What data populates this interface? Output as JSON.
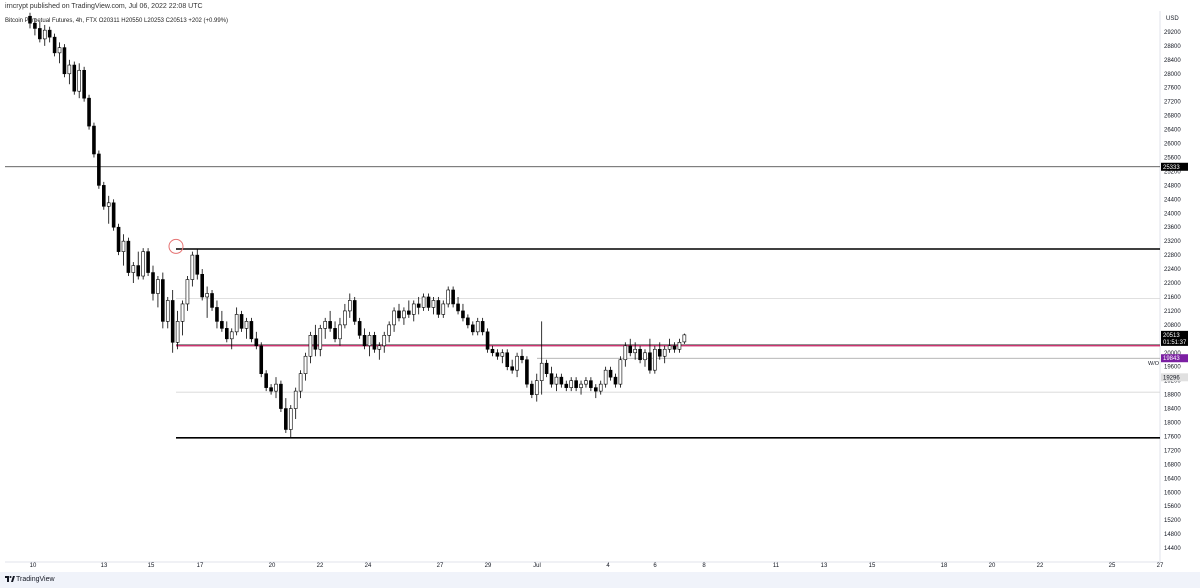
{
  "header": {
    "published": "irncrypt published on TradingView.com, Jul 06, 2022 22:08 UTC"
  },
  "legend": {
    "symbol": "Bitcoin Perpetual Futures, 4h, FTX",
    "ohlc": "O20311 H20550 L20253 C20513",
    "change": "+202 (+0.99%)"
  },
  "footer": {
    "brand": "TradingView",
    "logo_icon": "tradingview-logo-icon"
  },
  "colors": {
    "up_candle": "#ffffff",
    "down_candle": "#000000",
    "candle_outline": "#000000",
    "red_line": "#c2185b",
    "circle": "#e57373",
    "purple_tag": "#7b1fa2",
    "black_tag": "#000000",
    "grey_tag": "#e0e0e0"
  },
  "chart_data": {
    "type": "candlestick",
    "symbol": "Bitcoin Perpetual Futures",
    "timeframe": "4h",
    "exchange": "FTX",
    "currency": "USD",
    "last_ohlc": {
      "open": 20311,
      "high": 20550,
      "low": 20253,
      "close": 20513
    },
    "change": 202,
    "change_pct": 0.99,
    "ylim": [
      14000,
      29800
    ],
    "y_ticks": [
      29200,
      28800,
      28400,
      28000,
      27600,
      27200,
      26800,
      26400,
      26000,
      25600,
      25200,
      24800,
      24400,
      24000,
      23600,
      23200,
      22800,
      22400,
      22000,
      21600,
      21200,
      20800,
      20400,
      20000,
      19600,
      19200,
      18800,
      18400,
      18000,
      17600,
      17200,
      16800,
      16400,
      16000,
      15600,
      15200,
      14800,
      14400
    ],
    "x_ticks": [
      "10",
      "13",
      "15",
      "17",
      "20",
      "22",
      "24",
      "27",
      "29",
      "Jul",
      "4",
      "6",
      "8",
      "11",
      "13",
      "15",
      "18",
      "20",
      "22",
      "25",
      "27"
    ],
    "price_tags": [
      {
        "label": "25333",
        "value": 25333,
        "style": "black"
      },
      {
        "label": "20513",
        "value": 20513,
        "style": "black"
      },
      {
        "label": "01:51:37",
        "value": 20513,
        "style": "black-sub"
      },
      {
        "label": "19843",
        "value": 19843,
        "style": "purple"
      },
      {
        "label": "19296",
        "value": 19296,
        "style": "grey"
      }
    ],
    "level_label": "W/O",
    "horizontal_levels": [
      {
        "price": 25333,
        "style": "thin-black",
        "extent": "full"
      },
      {
        "price": 22975,
        "style": "thick-black",
        "extent": "from-peak"
      },
      {
        "price": 21560,
        "style": "faint-grey",
        "extent": "from-peak"
      },
      {
        "price": 20200,
        "style": "red",
        "extent": "from-peak"
      },
      {
        "price": 19843,
        "style": "thin-grey",
        "extent": "from-jul"
      },
      {
        "price": 18870,
        "style": "faint-grey",
        "extent": "from-peak"
      },
      {
        "price": 17560,
        "style": "thick-black",
        "extent": "from-peak"
      }
    ],
    "marker_circle": {
      "price": 23050
    },
    "candles": [
      {
        "o": 29650,
        "h": 29750,
        "l": 29300,
        "c": 29450
      },
      {
        "o": 29450,
        "h": 29600,
        "l": 29100,
        "c": 29300
      },
      {
        "o": 29300,
        "h": 29500,
        "l": 28900,
        "c": 29000
      },
      {
        "o": 29000,
        "h": 29400,
        "l": 28800,
        "c": 29250
      },
      {
        "o": 29250,
        "h": 29350,
        "l": 28900,
        "c": 29050
      },
      {
        "o": 29050,
        "h": 29150,
        "l": 28500,
        "c": 28600
      },
      {
        "o": 28600,
        "h": 28900,
        "l": 28300,
        "c": 28750
      },
      {
        "o": 28750,
        "h": 28850,
        "l": 27900,
        "c": 28000
      },
      {
        "o": 28000,
        "h": 28400,
        "l": 27700,
        "c": 28250
      },
      {
        "o": 28250,
        "h": 28350,
        "l": 27400,
        "c": 27500
      },
      {
        "o": 27500,
        "h": 28300,
        "l": 27300,
        "c": 28100
      },
      {
        "o": 28100,
        "h": 28200,
        "l": 27200,
        "c": 27300
      },
      {
        "o": 27300,
        "h": 27400,
        "l": 26400,
        "c": 26500
      },
      {
        "o": 26500,
        "h": 26600,
        "l": 25600,
        "c": 25700
      },
      {
        "o": 25700,
        "h": 25800,
        "l": 24700,
        "c": 24800
      },
      {
        "o": 24800,
        "h": 24900,
        "l": 24100,
        "c": 24200
      },
      {
        "o": 24200,
        "h": 24500,
        "l": 23700,
        "c": 24300
      },
      {
        "o": 24300,
        "h": 24400,
        "l": 23500,
        "c": 23600
      },
      {
        "o": 23600,
        "h": 23700,
        "l": 22800,
        "c": 22900
      },
      {
        "o": 22900,
        "h": 23400,
        "l": 22500,
        "c": 23200
      },
      {
        "o": 23200,
        "h": 23300,
        "l": 22200,
        "c": 22300
      },
      {
        "o": 22300,
        "h": 22600,
        "l": 22000,
        "c": 22500
      },
      {
        "o": 22500,
        "h": 22900,
        "l": 22100,
        "c": 22200
      },
      {
        "o": 22200,
        "h": 23000,
        "l": 22100,
        "c": 22900
      },
      {
        "o": 22900,
        "h": 23000,
        "l": 22200,
        "c": 22300
      },
      {
        "o": 22300,
        "h": 22500,
        "l": 21500,
        "c": 21700
      },
      {
        "o": 21700,
        "h": 22200,
        "l": 21300,
        "c": 22100
      },
      {
        "o": 22100,
        "h": 22300,
        "l": 20700,
        "c": 20900
      },
      {
        "o": 20900,
        "h": 21600,
        "l": 20700,
        "c": 21500
      },
      {
        "o": 21500,
        "h": 21800,
        "l": 20000,
        "c": 20300
      },
      {
        "o": 20300,
        "h": 21200,
        "l": 20100,
        "c": 20900
      },
      {
        "o": 20900,
        "h": 21500,
        "l": 20500,
        "c": 21400
      },
      {
        "o": 21400,
        "h": 22200,
        "l": 21200,
        "c": 22100
      },
      {
        "o": 22100,
        "h": 22900,
        "l": 21900,
        "c": 22800
      },
      {
        "o": 22800,
        "h": 22980,
        "l": 22100,
        "c": 22250
      },
      {
        "o": 22250,
        "h": 22400,
        "l": 21500,
        "c": 21600
      },
      {
        "o": 21600,
        "h": 21900,
        "l": 21000,
        "c": 21700
      },
      {
        "o": 21700,
        "h": 21800,
        "l": 21200,
        "c": 21300
      },
      {
        "o": 21300,
        "h": 21500,
        "l": 20700,
        "c": 20900
      },
      {
        "o": 20900,
        "h": 21200,
        "l": 20600,
        "c": 20700
      },
      {
        "o": 20700,
        "h": 20900,
        "l": 20300,
        "c": 20400
      },
      {
        "o": 20400,
        "h": 20700,
        "l": 20100,
        "c": 20600
      },
      {
        "o": 20600,
        "h": 21300,
        "l": 20500,
        "c": 21100
      },
      {
        "o": 21100,
        "h": 21200,
        "l": 20600,
        "c": 20700
      },
      {
        "o": 20700,
        "h": 21000,
        "l": 20400,
        "c": 20900
      },
      {
        "o": 20900,
        "h": 21000,
        "l": 20300,
        "c": 20400
      },
      {
        "o": 20400,
        "h": 20600,
        "l": 20100,
        "c": 20200
      },
      {
        "o": 20200,
        "h": 20300,
        "l": 19300,
        "c": 19400
      },
      {
        "o": 19400,
        "h": 19500,
        "l": 18900,
        "c": 19000
      },
      {
        "o": 19000,
        "h": 19100,
        "l": 18800,
        "c": 18900
      },
      {
        "o": 18900,
        "h": 19300,
        "l": 18700,
        "c": 19100
      },
      {
        "o": 19100,
        "h": 19200,
        "l": 18300,
        "c": 18400
      },
      {
        "o": 18400,
        "h": 18700,
        "l": 17700,
        "c": 17800
      },
      {
        "o": 17800,
        "h": 18500,
        "l": 17560,
        "c": 18400
      },
      {
        "o": 18400,
        "h": 19000,
        "l": 18100,
        "c": 18900
      },
      {
        "o": 18900,
        "h": 19500,
        "l": 18700,
        "c": 19400
      },
      {
        "o": 19400,
        "h": 20000,
        "l": 19200,
        "c": 19900
      },
      {
        "o": 19900,
        "h": 20600,
        "l": 19700,
        "c": 20500
      },
      {
        "o": 20500,
        "h": 20800,
        "l": 19900,
        "c": 20100
      },
      {
        "o": 20100,
        "h": 20800,
        "l": 19900,
        "c": 20700
      },
      {
        "o": 20700,
        "h": 21000,
        "l": 20400,
        "c": 20900
      },
      {
        "o": 20900,
        "h": 21200,
        "l": 20600,
        "c": 20700
      },
      {
        "o": 20700,
        "h": 20900,
        "l": 20300,
        "c": 20400
      },
      {
        "o": 20400,
        "h": 21000,
        "l": 20200,
        "c": 20800
      },
      {
        "o": 20800,
        "h": 21400,
        "l": 20700,
        "c": 21200
      },
      {
        "o": 21200,
        "h": 21700,
        "l": 21000,
        "c": 21500
      },
      {
        "o": 21500,
        "h": 21600,
        "l": 20800,
        "c": 20900
      },
      {
        "o": 20900,
        "h": 21000,
        "l": 20400,
        "c": 20500
      },
      {
        "o": 20500,
        "h": 20700,
        "l": 20100,
        "c": 20200
      },
      {
        "o": 20200,
        "h": 20600,
        "l": 19900,
        "c": 20500
      },
      {
        "o": 20500,
        "h": 20600,
        "l": 20000,
        "c": 20100
      },
      {
        "o": 20100,
        "h": 20300,
        "l": 19800,
        "c": 20200
      },
      {
        "o": 20200,
        "h": 20600,
        "l": 20000,
        "c": 20500
      },
      {
        "o": 20500,
        "h": 20900,
        "l": 20300,
        "c": 20800
      },
      {
        "o": 20800,
        "h": 21300,
        "l": 20600,
        "c": 21200
      },
      {
        "o": 21200,
        "h": 21400,
        "l": 20900,
        "c": 21000
      },
      {
        "o": 21000,
        "h": 21300,
        "l": 20800,
        "c": 21200
      },
      {
        "o": 21200,
        "h": 21500,
        "l": 21000,
        "c": 21100
      },
      {
        "o": 21100,
        "h": 21500,
        "l": 20900,
        "c": 21400
      },
      {
        "o": 21400,
        "h": 21600,
        "l": 21100,
        "c": 21300
      },
      {
        "o": 21300,
        "h": 21700,
        "l": 21200,
        "c": 21600
      },
      {
        "o": 21600,
        "h": 21700,
        "l": 21200,
        "c": 21300
      },
      {
        "o": 21300,
        "h": 21600,
        "l": 21100,
        "c": 21500
      },
      {
        "o": 21500,
        "h": 21600,
        "l": 21000,
        "c": 21100
      },
      {
        "o": 21100,
        "h": 21500,
        "l": 21000,
        "c": 21400
      },
      {
        "o": 21400,
        "h": 21900,
        "l": 21300,
        "c": 21800
      },
      {
        "o": 21800,
        "h": 21900,
        "l": 21300,
        "c": 21400
      },
      {
        "o": 21400,
        "h": 21600,
        "l": 21100,
        "c": 21200
      },
      {
        "o": 21200,
        "h": 21400,
        "l": 20900,
        "c": 21000
      },
      {
        "o": 21000,
        "h": 21100,
        "l": 20700,
        "c": 20800
      },
      {
        "o": 20800,
        "h": 20900,
        "l": 20500,
        "c": 20600
      },
      {
        "o": 20600,
        "h": 21000,
        "l": 20500,
        "c": 20900
      },
      {
        "o": 20900,
        "h": 21000,
        "l": 20500,
        "c": 20600
      },
      {
        "o": 20600,
        "h": 20700,
        "l": 20000,
        "c": 20100
      },
      {
        "o": 20100,
        "h": 20200,
        "l": 19900,
        "c": 20000
      },
      {
        "o": 20000,
        "h": 20100,
        "l": 19800,
        "c": 19900
      },
      {
        "o": 19900,
        "h": 20100,
        "l": 19700,
        "c": 20000
      },
      {
        "o": 20000,
        "h": 20100,
        "l": 19500,
        "c": 19600
      },
      {
        "o": 19600,
        "h": 19800,
        "l": 19400,
        "c": 19500
      },
      {
        "o": 19500,
        "h": 20000,
        "l": 19300,
        "c": 19900
      },
      {
        "o": 19900,
        "h": 20100,
        "l": 19700,
        "c": 19800
      },
      {
        "o": 19800,
        "h": 19900,
        "l": 19000,
        "c": 19100
      },
      {
        "o": 19100,
        "h": 19200,
        "l": 18700,
        "c": 18800
      },
      {
        "o": 18800,
        "h": 19400,
        "l": 18600,
        "c": 19200
      },
      {
        "o": 19200,
        "h": 20900,
        "l": 18800,
        "c": 19700
      },
      {
        "o": 19700,
        "h": 19800,
        "l": 19300,
        "c": 19400
      },
      {
        "o": 19400,
        "h": 19600,
        "l": 19000,
        "c": 19100
      },
      {
        "o": 19100,
        "h": 19400,
        "l": 18900,
        "c": 19300
      },
      {
        "o": 19300,
        "h": 19400,
        "l": 19000,
        "c": 19100
      },
      {
        "o": 19100,
        "h": 19200,
        "l": 18900,
        "c": 19000
      },
      {
        "o": 19000,
        "h": 19300,
        "l": 18900,
        "c": 19200
      },
      {
        "o": 19200,
        "h": 19300,
        "l": 18900,
        "c": 19000
      },
      {
        "o": 19000,
        "h": 19200,
        "l": 18800,
        "c": 19100
      },
      {
        "o": 19100,
        "h": 19300,
        "l": 19000,
        "c": 19200
      },
      {
        "o": 19200,
        "h": 19300,
        "l": 18900,
        "c": 19000
      },
      {
        "o": 19000,
        "h": 19100,
        "l": 18700,
        "c": 18900
      },
      {
        "o": 18900,
        "h": 19200,
        "l": 18800,
        "c": 19100
      },
      {
        "o": 19100,
        "h": 19600,
        "l": 19000,
        "c": 19500
      },
      {
        "o": 19500,
        "h": 19600,
        "l": 19200,
        "c": 19300
      },
      {
        "o": 19300,
        "h": 19400,
        "l": 19000,
        "c": 19100
      },
      {
        "o": 19100,
        "h": 19900,
        "l": 19000,
        "c": 19800
      },
      {
        "o": 19800,
        "h": 20300,
        "l": 19600,
        "c": 20200
      },
      {
        "o": 20200,
        "h": 20400,
        "l": 19900,
        "c": 20000
      },
      {
        "o": 20000,
        "h": 20300,
        "l": 19800,
        "c": 20100
      },
      {
        "o": 20100,
        "h": 20200,
        "l": 19700,
        "c": 19800
      },
      {
        "o": 19800,
        "h": 20100,
        "l": 19600,
        "c": 20000
      },
      {
        "o": 20000,
        "h": 20400,
        "l": 19400,
        "c": 19500
      },
      {
        "o": 19500,
        "h": 20200,
        "l": 19400,
        "c": 20100
      },
      {
        "o": 20100,
        "h": 20300,
        "l": 19800,
        "c": 19900
      },
      {
        "o": 19900,
        "h": 20200,
        "l": 19700,
        "c": 20100
      },
      {
        "o": 20100,
        "h": 20400,
        "l": 20000,
        "c": 20200
      },
      {
        "o": 20200,
        "h": 20300,
        "l": 20000,
        "c": 20100
      },
      {
        "o": 20100,
        "h": 20400,
        "l": 20000,
        "c": 20300
      },
      {
        "o": 20311,
        "h": 20550,
        "l": 20253,
        "c": 20513
      }
    ]
  }
}
